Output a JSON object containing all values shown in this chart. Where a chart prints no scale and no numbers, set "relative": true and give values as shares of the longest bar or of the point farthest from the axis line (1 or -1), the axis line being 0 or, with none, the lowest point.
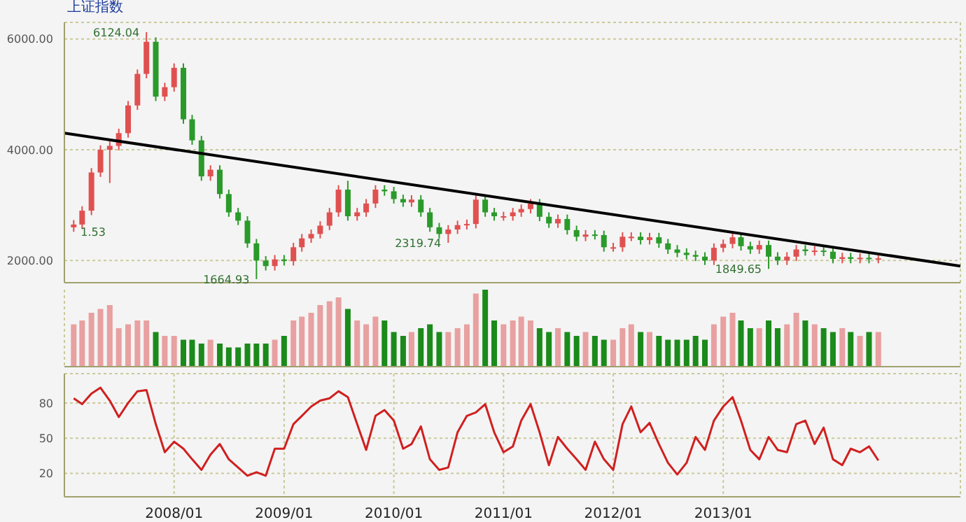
{
  "chart_data": [
    {
      "type": "candlestick",
      "title": "上证指数",
      "x": [
        "2007-02",
        "2007-03",
        "2007-04",
        "2007-05",
        "2007-06",
        "2007-07",
        "2007-08",
        "2007-09",
        "2007-10",
        "2007-11",
        "2007-12",
        "2008-01",
        "2008-02",
        "2008-03",
        "2008-04",
        "2008-05",
        "2008-06",
        "2008-07",
        "2008-08",
        "2008-09",
        "2008-10",
        "2008-11",
        "2008-12",
        "2009-01",
        "2009-02",
        "2009-03",
        "2009-04",
        "2009-05",
        "2009-06",
        "2009-07",
        "2009-08",
        "2009-09",
        "2009-10",
        "2009-11",
        "2009-12",
        "2010-01",
        "2010-02",
        "2010-03",
        "2010-04",
        "2010-05",
        "2010-06",
        "2010-07",
        "2010-08",
        "2010-09",
        "2010-10",
        "2010-11",
        "2010-12",
        "2011-01",
        "2011-02",
        "2011-03",
        "2011-04",
        "2011-05",
        "2011-06",
        "2011-07",
        "2011-08",
        "2011-09",
        "2011-10",
        "2011-11",
        "2011-12",
        "2012-01",
        "2012-02",
        "2012-03",
        "2012-04",
        "2012-05",
        "2012-06",
        "2012-07",
        "2012-08",
        "2012-09",
        "2012-10",
        "2012-11",
        "2012-12",
        "2013-01",
        "2013-02",
        "2013-03",
        "2013-04",
        "2013-05",
        "2013-06",
        "2013-07",
        "2013-08",
        "2013-09",
        "2013-10",
        "2013-11",
        "2013-12",
        "2014-01",
        "2014-02",
        "2014-03",
        "2014-04",
        "2014-05",
        "2014-06"
      ],
      "ohlc": [
        [
          2600,
          2730,
          2520,
          2650
        ],
        [
          2650,
          2980,
          2570,
          2900
        ],
        [
          2900,
          3670,
          2820,
          3590
        ],
        [
          3590,
          4080,
          3510,
          4000
        ],
        [
          4000,
          4150,
          3400,
          4070
        ],
        [
          4070,
          4380,
          3990,
          4300
        ],
        [
          4300,
          4880,
          4220,
          4800
        ],
        [
          4800,
          5450,
          4720,
          5370
        ],
        [
          5370,
          6124.04,
          5290,
          5950
        ],
        [
          5950,
          6030,
          4880,
          4960
        ],
        [
          4960,
          5210,
          4880,
          5130
        ],
        [
          5130,
          5560,
          5050,
          5480
        ],
        [
          5480,
          5560,
          4470,
          4550
        ],
        [
          4550,
          4630,
          4090,
          4170
        ],
        [
          4170,
          4250,
          3440,
          3520
        ],
        [
          3520,
          3720,
          3440,
          3640
        ],
        [
          3640,
          3720,
          3120,
          3200
        ],
        [
          3200,
          3280,
          2790,
          2870
        ],
        [
          2870,
          2950,
          2640,
          2720
        ],
        [
          2720,
          2800,
          2230,
          2310
        ],
        [
          2310,
          2390,
          1664.93,
          2000
        ],
        [
          2000,
          2080,
          1820,
          1900
        ],
        [
          1900,
          2100,
          1820,
          2020
        ],
        [
          2020,
          2100,
          1910,
          1990
        ],
        [
          1990,
          2320,
          1910,
          2240
        ],
        [
          2240,
          2480,
          2160,
          2400
        ],
        [
          2400,
          2560,
          2320,
          2480
        ],
        [
          2480,
          2710,
          2400,
          2630
        ],
        [
          2630,
          2950,
          2550,
          2870
        ],
        [
          2870,
          3360,
          2790,
          3280
        ],
        [
          3280,
          3440,
          2720,
          2800
        ],
        [
          2800,
          2950,
          2720,
          2870
        ],
        [
          2870,
          3110,
          2790,
          3030
        ],
        [
          3030,
          3360,
          2950,
          3280
        ],
        [
          3280,
          3360,
          3170,
          3250
        ],
        [
          3250,
          3330,
          3030,
          3110
        ],
        [
          3110,
          3190,
          2970,
          3050
        ],
        [
          3050,
          3180,
          2970,
          3100
        ],
        [
          3100,
          3180,
          2790,
          2870
        ],
        [
          2870,
          2950,
          2520,
          2600
        ],
        [
          2600,
          2680,
          2400,
          2480
        ],
        [
          2480,
          2640,
          2319.74,
          2560
        ],
        [
          2560,
          2720,
          2480,
          2640
        ],
        [
          2640,
          2740,
          2560,
          2660
        ],
        [
          2660,
          3180,
          2580,
          3100
        ],
        [
          3100,
          3180,
          2790,
          2870
        ],
        [
          2870,
          2950,
          2720,
          2800
        ],
        [
          2800,
          2880,
          2720,
          2800
        ],
        [
          2800,
          2950,
          2720,
          2870
        ],
        [
          2870,
          3010,
          2790,
          2930
        ],
        [
          2930,
          3110,
          2850,
          3030
        ],
        [
          3030,
          3110,
          2710,
          2790
        ],
        [
          2790,
          2870,
          2590,
          2670
        ],
        [
          2670,
          2830,
          2590,
          2750
        ],
        [
          2750,
          2830,
          2470,
          2550
        ],
        [
          2550,
          2630,
          2350,
          2430
        ],
        [
          2430,
          2550,
          2350,
          2470
        ],
        [
          2470,
          2550,
          2380,
          2460
        ],
        [
          2460,
          2540,
          2160,
          2240
        ],
        [
          2240,
          2320,
          2160,
          2240
        ],
        [
          2240,
          2510,
          2160,
          2430
        ],
        [
          2430,
          2510,
          2350,
          2430
        ],
        [
          2430,
          2510,
          2290,
          2370
        ],
        [
          2370,
          2500,
          2290,
          2420
        ],
        [
          2420,
          2500,
          2230,
          2310
        ],
        [
          2310,
          2390,
          2120,
          2200
        ],
        [
          2200,
          2280,
          2060,
          2140
        ],
        [
          2140,
          2220,
          2020,
          2100
        ],
        [
          2100,
          2180,
          1990,
          2070
        ],
        [
          2070,
          2150,
          1920,
          2000
        ],
        [
          2000,
          2310,
          1920,
          2230
        ],
        [
          2230,
          2380,
          2150,
          2300
        ],
        [
          2300,
          2500,
          2220,
          2420
        ],
        [
          2420,
          2500,
          2180,
          2260
        ],
        [
          2260,
          2340,
          2120,
          2200
        ],
        [
          2200,
          2360,
          2120,
          2280
        ],
        [
          2280,
          2360,
          1849.65,
          2070
        ],
        [
          2070,
          2150,
          1920,
          2000
        ],
        [
          2000,
          2150,
          1920,
          2070
        ],
        [
          2070,
          2280,
          1990,
          2200
        ],
        [
          2200,
          2280,
          2090,
          2170
        ],
        [
          2170,
          2260,
          2090,
          2180
        ],
        [
          2180,
          2260,
          2080,
          2160
        ],
        [
          2160,
          2240,
          1950,
          2030
        ],
        [
          2030,
          2140,
          1950,
          2060
        ],
        [
          2060,
          2140,
          1950,
          2030
        ],
        [
          2030,
          2130,
          1950,
          2050
        ],
        [
          2050,
          2130,
          1950,
          2030
        ],
        [
          2030,
          2120,
          1950,
          2040
        ]
      ],
      "colors": [
        "#e05050",
        "#e05050",
        "#e05050",
        "#e05050",
        "#e05050",
        "#e05050",
        "#e05050",
        "#e05050",
        "#e05050",
        "#2a9a2a",
        "#e05050",
        "#e05050",
        "#2a9a2a",
        "#2a9a2a",
        "#2a9a2a",
        "#e05050",
        "#2a9a2a",
        "#2a9a2a",
        "#2a9a2a",
        "#2a9a2a",
        "#2a9a2a",
        "#2a9a2a",
        "#e05050",
        "#2a9a2a",
        "#e05050",
        "#e05050",
        "#e05050",
        "#e05050",
        "#e05050",
        "#e05050",
        "#2a9a2a",
        "#e05050",
        "#e05050",
        "#e05050",
        "#2a9a2a",
        "#2a9a2a",
        "#2a9a2a",
        "#e05050",
        "#2a9a2a",
        "#2a9a2a",
        "#2a9a2a",
        "#e05050",
        "#e05050",
        "#e05050",
        "#e05050",
        "#2a9a2a",
        "#2a9a2a",
        "#e05050",
        "#e05050",
        "#e05050",
        "#e05050",
        "#2a9a2a",
        "#2a9a2a",
        "#e05050",
        "#2a9a2a",
        "#2a9a2a",
        "#e05050",
        "#2a9a2a",
        "#2a9a2a",
        "#e05050",
        "#e05050",
        "#e05050",
        "#2a9a2a",
        "#e05050",
        "#2a9a2a",
        "#2a9a2a",
        "#2a9a2a",
        "#2a9a2a",
        "#2a9a2a",
        "#2a9a2a",
        "#e05050",
        "#e05050",
        "#e05050",
        "#2a9a2a",
        "#2a9a2a",
        "#e05050",
        "#2a9a2a",
        "#2a9a2a",
        "#e05050",
        "#e05050",
        "#2a9a2a",
        "#e05050",
        "#2a9a2a",
        "#2a9a2a",
        "#e05050",
        "#2a9a2a",
        "#e05050",
        "#2a9a2a",
        "#e05050"
      ],
      "series": [
        {
          "type": "line",
          "color": "#000000",
          "x": [
            "2007-01",
            "2015-03"
          ],
          "values": [
            4300,
            1900
          ]
        }
      ],
      "xlim": [
        "2007-01",
        "2015-03"
      ],
      "xticks": [
        {
          "value": "2008-01",
          "label": null
        },
        {
          "value": "2009-01",
          "label": null
        },
        {
          "value": "2010-01",
          "label": null
        },
        {
          "value": "2011-01",
          "label": null
        },
        {
          "value": "2012-01",
          "label": null
        },
        {
          "value": "2013-01",
          "label": null
        }
      ],
      "ylim": [
        1600,
        6300
      ],
      "yticks": [
        {
          "value": 2000,
          "label": "2000.00"
        },
        {
          "value": 4000,
          "label": "4000.00"
        },
        {
          "value": 6000,
          "label": "6000.00"
        }
      ],
      "grid": true,
      "tick_labels": "y",
      "annotations": [
        {
          "text": "6124.04",
          "x": "2007-10",
          "y": 6124.04
        },
        {
          "text": "1664.93",
          "x": "2008-10",
          "y": 1664.93
        },
        {
          "text": "2319.74",
          "x": "2010-07",
          "y": 2319.74
        },
        {
          "text": "1849.65",
          "x": "2013-06",
          "y": 1849.65
        },
        {
          "text": "1.53",
          "x": "2007-02",
          "y": 2520
        }
      ]
    },
    {
      "type": "bar",
      "relative": true,
      "x": [
        "2007-02",
        "2007-03",
        "2007-04",
        "2007-05",
        "2007-06",
        "2007-07",
        "2007-08",
        "2007-09",
        "2007-10",
        "2007-11",
        "2007-12",
        "2008-01",
        "2008-02",
        "2008-03",
        "2008-04",
        "2008-05",
        "2008-06",
        "2008-07",
        "2008-08",
        "2008-09",
        "2008-10",
        "2008-11",
        "2008-12",
        "2009-01",
        "2009-02",
        "2009-03",
        "2009-04",
        "2009-05",
        "2009-06",
        "2009-07",
        "2009-08",
        "2009-09",
        "2009-10",
        "2009-11",
        "2009-12",
        "2010-01",
        "2010-02",
        "2010-03",
        "2010-04",
        "2010-05",
        "2010-06",
        "2010-07",
        "2010-08",
        "2010-09",
        "2010-10",
        "2010-11",
        "2010-12",
        "2011-01",
        "2011-02",
        "2011-03",
        "2011-04",
        "2011-05",
        "2011-06",
        "2011-07",
        "2011-08",
        "2011-09",
        "2011-10",
        "2011-11",
        "2011-12",
        "2012-01",
        "2012-02",
        "2012-03",
        "2012-04",
        "2012-05",
        "2012-06",
        "2012-07",
        "2012-08",
        "2012-09",
        "2012-10",
        "2012-11",
        "2012-12",
        "2013-01",
        "2013-02",
        "2013-03",
        "2013-04",
        "2013-05",
        "2013-06",
        "2013-07",
        "2013-08",
        "2013-09",
        "2013-10",
        "2013-11",
        "2013-12",
        "2014-01",
        "2014-02",
        "2014-03",
        "2014-04",
        "2014-05",
        "2014-06"
      ],
      "values": [
        0.55,
        0.6,
        0.7,
        0.75,
        0.8,
        0.5,
        0.55,
        0.6,
        0.6,
        0.45,
        0.4,
        0.4,
        0.35,
        0.35,
        0.3,
        0.35,
        0.3,
        0.25,
        0.25,
        0.3,
        0.3,
        0.3,
        0.35,
        0.4,
        0.6,
        0.65,
        0.7,
        0.8,
        0.85,
        0.9,
        0.75,
        0.6,
        0.55,
        0.65,
        0.6,
        0.45,
        0.4,
        0.45,
        0.5,
        0.55,
        0.45,
        0.45,
        0.5,
        0.55,
        0.95,
        1.0,
        0.6,
        0.55,
        0.6,
        0.65,
        0.6,
        0.5,
        0.45,
        0.5,
        0.45,
        0.4,
        0.45,
        0.4,
        0.35,
        0.35,
        0.5,
        0.55,
        0.45,
        0.45,
        0.4,
        0.35,
        0.35,
        0.35,
        0.4,
        0.35,
        0.55,
        0.65,
        0.7,
        0.6,
        0.5,
        0.5,
        0.6,
        0.5,
        0.55,
        0.7,
        0.6,
        0.55,
        0.5,
        0.45,
        0.5,
        0.45,
        0.4,
        0.45,
        0.45
      ],
      "colors": [
        "#e8a0a0",
        "#e8a0a0",
        "#e8a0a0",
        "#e8a0a0",
        "#e8a0a0",
        "#e8a0a0",
        "#e8a0a0",
        "#e8a0a0",
        "#e8a0a0",
        "#1a8a1a",
        "#e8a0a0",
        "#e8a0a0",
        "#1a8a1a",
        "#1a8a1a",
        "#1a8a1a",
        "#e8a0a0",
        "#1a8a1a",
        "#1a8a1a",
        "#1a8a1a",
        "#1a8a1a",
        "#1a8a1a",
        "#1a8a1a",
        "#e8a0a0",
        "#1a8a1a",
        "#e8a0a0",
        "#e8a0a0",
        "#e8a0a0",
        "#e8a0a0",
        "#e8a0a0",
        "#e8a0a0",
        "#1a8a1a",
        "#e8a0a0",
        "#e8a0a0",
        "#e8a0a0",
        "#1a8a1a",
        "#1a8a1a",
        "#1a8a1a",
        "#e8a0a0",
        "#1a8a1a",
        "#1a8a1a",
        "#1a8a1a",
        "#e8a0a0",
        "#e8a0a0",
        "#e8a0a0",
        "#e8a0a0",
        "#1a8a1a",
        "#1a8a1a",
        "#e8a0a0",
        "#e8a0a0",
        "#e8a0a0",
        "#e8a0a0",
        "#1a8a1a",
        "#1a8a1a",
        "#e8a0a0",
        "#1a8a1a",
        "#1a8a1a",
        "#e8a0a0",
        "#1a8a1a",
        "#1a8a1a",
        "#e8a0a0",
        "#e8a0a0",
        "#e8a0a0",
        "#1a8a1a",
        "#e8a0a0",
        "#1a8a1a",
        "#1a8a1a",
        "#1a8a1a",
        "#1a8a1a",
        "#1a8a1a",
        "#1a8a1a",
        "#e8a0a0",
        "#e8a0a0",
        "#e8a0a0",
        "#1a8a1a",
        "#1a8a1a",
        "#e8a0a0",
        "#1a8a1a",
        "#1a8a1a",
        "#e8a0a0",
        "#e8a0a0",
        "#1a8a1a",
        "#e8a0a0",
        "#1a8a1a",
        "#1a8a1a",
        "#e8a0a0",
        "#1a8a1a",
        "#e8a0a0",
        "#1a8a1a",
        "#e8a0a0"
      ],
      "xlim": [
        "2007-01",
        "2015-03"
      ],
      "xticks": [
        {
          "value": "2008-01",
          "label": null
        },
        {
          "value": "2009-01",
          "label": null
        },
        {
          "value": "2010-01",
          "label": null
        },
        {
          "value": "2011-01",
          "label": null
        },
        {
          "value": "2012-01",
          "label": null
        },
        {
          "value": "2013-01",
          "label": null
        }
      ],
      "grid": "x",
      "tick_labels": false
    },
    {
      "type": "line",
      "x": [
        "2007-02",
        "2007-03",
        "2007-04",
        "2007-05",
        "2007-06",
        "2007-07",
        "2007-08",
        "2007-09",
        "2007-10",
        "2007-11",
        "2007-12",
        "2008-01",
        "2008-02",
        "2008-03",
        "2008-04",
        "2008-05",
        "2008-06",
        "2008-07",
        "2008-08",
        "2008-09",
        "2008-10",
        "2008-11",
        "2008-12",
        "2009-01",
        "2009-02",
        "2009-03",
        "2009-04",
        "2009-05",
        "2009-06",
        "2009-07",
        "2009-08",
        "2009-09",
        "2009-10",
        "2009-11",
        "2009-12",
        "2010-01",
        "2010-02",
        "2010-03",
        "2010-04",
        "2010-05",
        "2010-06",
        "2010-07",
        "2010-08",
        "2010-09",
        "2010-10",
        "2010-11",
        "2010-12",
        "2011-01",
        "2011-02",
        "2011-03",
        "2011-04",
        "2011-05",
        "2011-06",
        "2011-07",
        "2011-08",
        "2011-09",
        "2011-10",
        "2011-11",
        "2011-12",
        "2012-01",
        "2012-02",
        "2012-03",
        "2012-04",
        "2012-05",
        "2012-06",
        "2012-07",
        "2012-08",
        "2012-09",
        "2012-10",
        "2012-11",
        "2012-12",
        "2013-01",
        "2013-02",
        "2013-03",
        "2013-04",
        "2013-05",
        "2013-06",
        "2013-07",
        "2013-08",
        "2013-09",
        "2013-10",
        "2013-11",
        "2013-12",
        "2014-01",
        "2014-02",
        "2014-03",
        "2014-04",
        "2014-05",
        "2014-06"
      ],
      "series": [
        {
          "color": "#d02020",
          "values": [
            84,
            79,
            88,
            93,
            82,
            68,
            80,
            90,
            91,
            62,
            38,
            47,
            41,
            32,
            23,
            36,
            45,
            32,
            25,
            18,
            21,
            18,
            41,
            41,
            62,
            69,
            77,
            82,
            84,
            90,
            85,
            62,
            40,
            69,
            74,
            65,
            41,
            45,
            60,
            32,
            23,
            25,
            55,
            69,
            72,
            79,
            55,
            38,
            43,
            65,
            79,
            55,
            27,
            51,
            41,
            32,
            23,
            47,
            32,
            23,
            62,
            77,
            55,
            63,
            45,
            29,
            19,
            29,
            51,
            40,
            65,
            77,
            85,
            65,
            40,
            32,
            51,
            40,
            38,
            62,
            65,
            45,
            59,
            32,
            27,
            41,
            38,
            43,
            31
          ]
        }
      ],
      "xlim": [
        "2007-01",
        "2015-03"
      ],
      "xticks": [
        {
          "value": "2008-01",
          "label": "2008/01"
        },
        {
          "value": "2009-01",
          "label": "2009/01"
        },
        {
          "value": "2010-01",
          "label": "2010/01"
        },
        {
          "value": "2011-01",
          "label": "2011/01"
        },
        {
          "value": "2012-01",
          "label": "2012/01"
        },
        {
          "value": "2013-01",
          "label": "2013/01"
        }
      ],
      "ylim": [
        0,
        105
      ],
      "yticks": [
        20,
        50,
        80
      ],
      "grid": true
    }
  ]
}
